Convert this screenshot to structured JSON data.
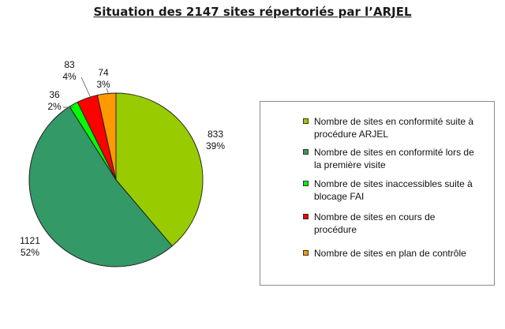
{
  "chart_data": {
    "type": "pie",
    "title": "Situation des 2147 sites répertoriés par l’ARJEL",
    "slices": [
      {
        "name": "Nombre de sites en conformité suite à procédure ARJEL",
        "value": 833,
        "percent_label": "39%",
        "color": "#99cc00"
      },
      {
        "name": "Nombre de sites en conformité lors de la première visite",
        "value": 1121,
        "percent_label": "52%",
        "color": "#339966"
      },
      {
        "name": "Nombre de sites inaccessibles suite à blocage FAI",
        "value": 36,
        "percent_label": "2%",
        "color": "#00ff00"
      },
      {
        "name": "Nombre de sites en cours de procédure",
        "value": 83,
        "percent_label": "4%",
        "color": "#ff0000"
      },
      {
        "name": "Nombre de sites en plan de contrôle",
        "value": 74,
        "percent_label": "3%",
        "color": "#ff9900"
      }
    ],
    "legend_position": "right"
  }
}
